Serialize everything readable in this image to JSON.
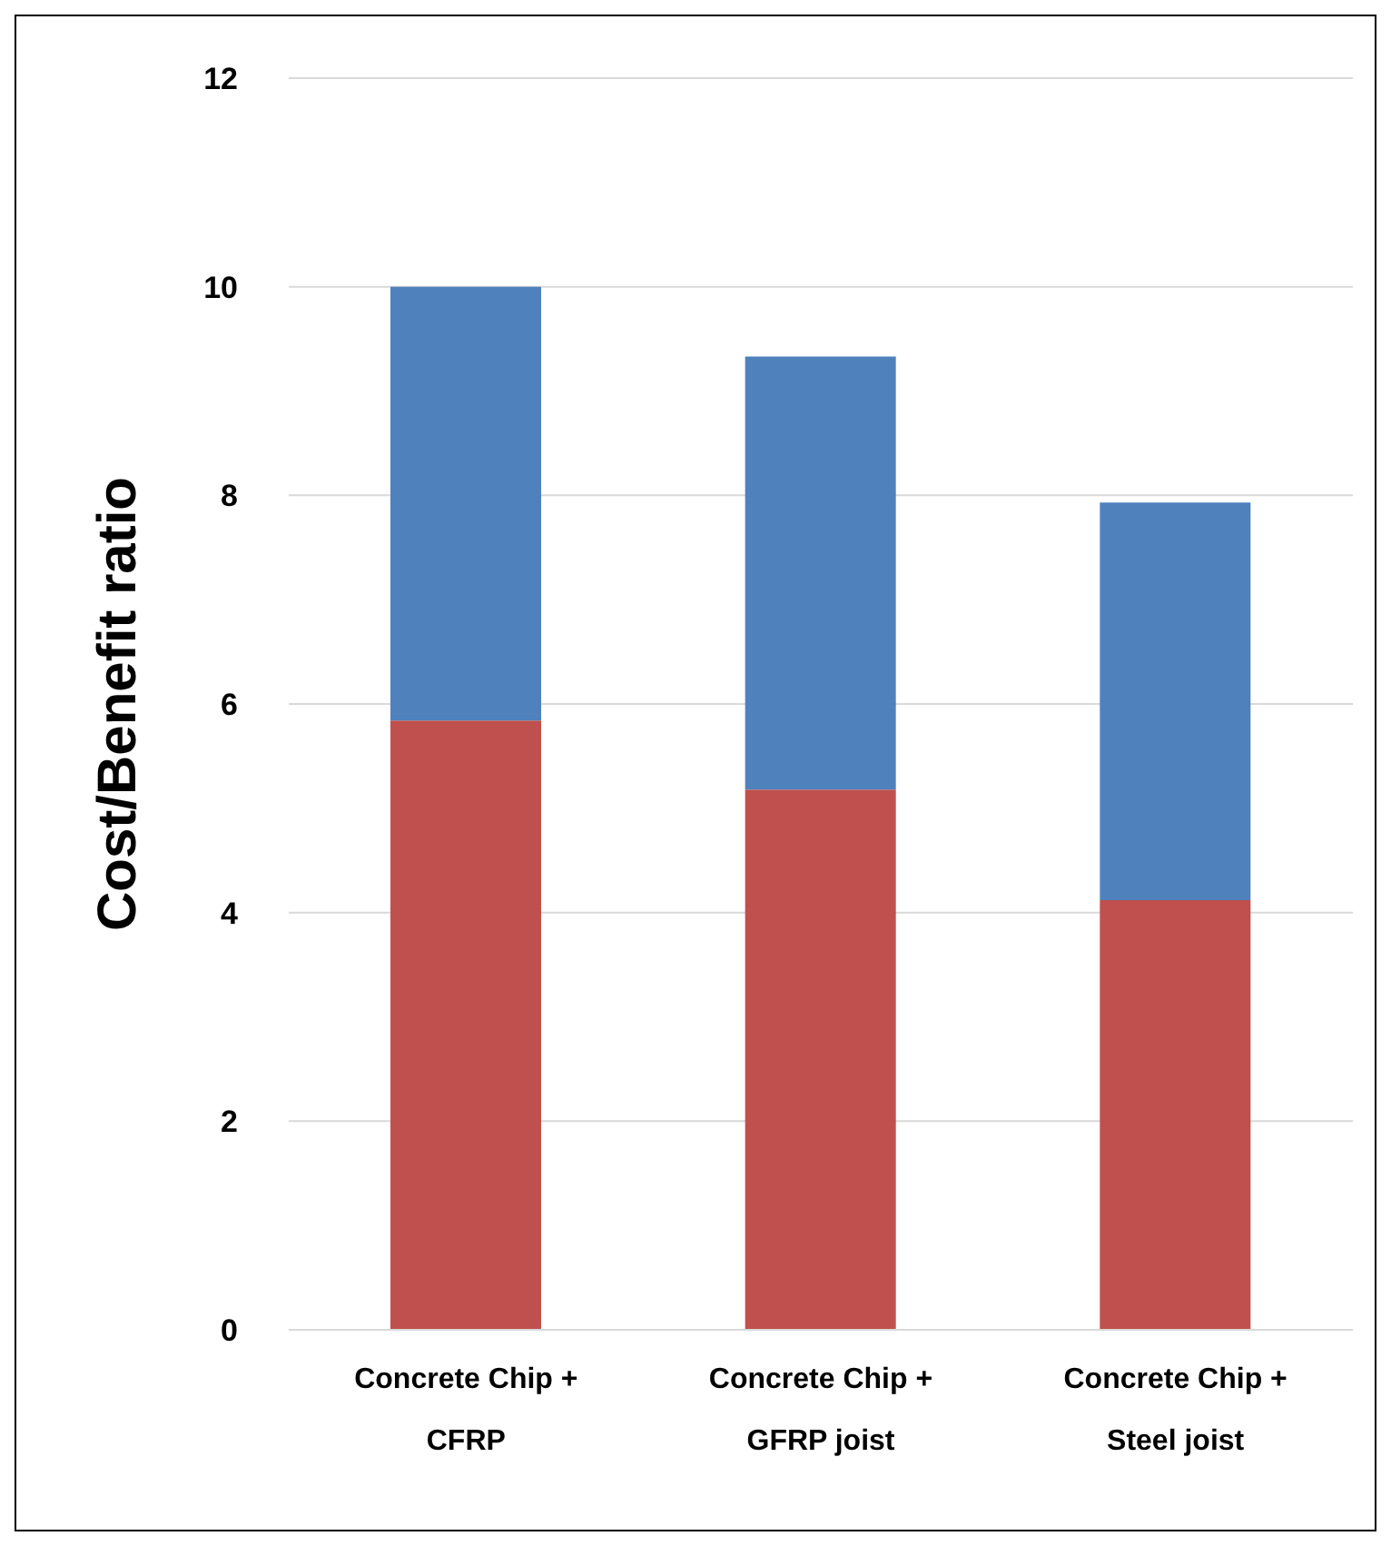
{
  "chart_data": {
    "type": "bar",
    "ylabel": "Cost/Benefit ratio",
    "categories": [
      "Concrete Chip + CFRP",
      "Concrete Chip + GFRP joist",
      "Concrete Chip + Steel joist"
    ],
    "stacked": true,
    "series": [
      {
        "color": "#c0504d",
        "values": [
          5.84,
          5.18,
          4.12
        ]
      },
      {
        "color": "#4f81bd",
        "values": [
          4.16,
          4.15,
          3.81
        ]
      }
    ],
    "ylim": [
      0,
      12
    ],
    "yticks": [
      0,
      2,
      4,
      6,
      8,
      10,
      12
    ],
    "grid": "y",
    "legend": false
  }
}
